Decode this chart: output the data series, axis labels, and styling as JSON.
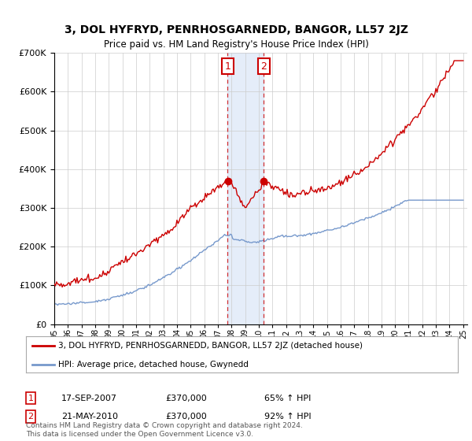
{
  "title": "3, DOL HYFRYD, PENRHOSGARNEDD, BANGOR, LL57 2JZ",
  "subtitle": "Price paid vs. HM Land Registry's House Price Index (HPI)",
  "red_label": "3, DOL HYFRYD, PENRHOSGARNEDD, BANGOR, LL57 2JZ (detached house)",
  "blue_label": "HPI: Average price, detached house, Gwynedd",
  "transaction1_date": "17-SEP-2007",
  "transaction1_price": 370000,
  "transaction1_pct": "65% ↑ HPI",
  "transaction2_date": "21-MAY-2010",
  "transaction2_price": 370000,
  "transaction2_pct": "92% ↑ HPI",
  "footer": "Contains HM Land Registry data © Crown copyright and database right 2024.\nThis data is licensed under the Open Government Licence v3.0.",
  "ylim_max": 700000,
  "background_color": "#ffffff",
  "shaded_region_color": "#ccddf5",
  "red_color": "#cc0000",
  "blue_color": "#7799cc",
  "t1_year": 2007.71,
  "t2_year": 2010.37
}
